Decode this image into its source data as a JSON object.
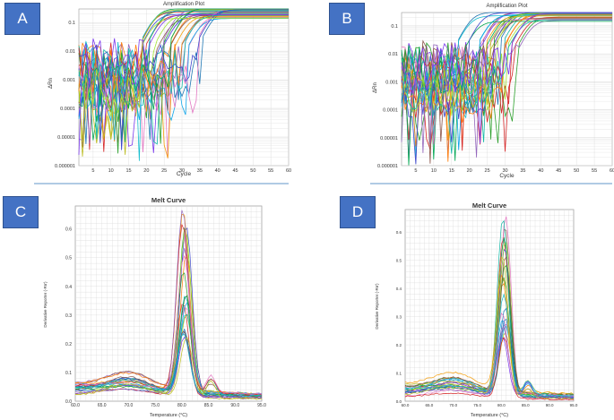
{
  "panels": {
    "A": {
      "label": "A"
    },
    "B": {
      "label": "B"
    },
    "C": {
      "label": "C"
    },
    "D": {
      "label": "D"
    }
  },
  "colors": {
    "badge": "#4472c4",
    "grid": "#d9d9d9",
    "series_palette": [
      "#1f77b4",
      "#2ca02c",
      "#d62728",
      "#9467bd",
      "#8c564b",
      "#e377c2",
      "#17becf",
      "#bcbd22",
      "#ff7f0e",
      "#00a651",
      "#3f48cc",
      "#a3e635",
      "#14b8a6",
      "#7c3aed",
      "#f59e0b",
      "#0ea5e9"
    ]
  },
  "chart_data": [
    {
      "id": "A",
      "type": "line",
      "title": "Amplification Plot",
      "xlabel": "Cycle",
      "ylabel": "ΔRn",
      "yscale": "log",
      "xlim": [
        1,
        60
      ],
      "ylim": [
        1e-06,
        0.3
      ],
      "xticks": [
        "5",
        "10",
        "15",
        "20",
        "25",
        "30",
        "35",
        "40",
        "45",
        "50",
        "55",
        "60"
      ],
      "yticks": [
        "0.1",
        "0.01",
        "0.001",
        "0.0001",
        "0.00001",
        "0.000001"
      ],
      "series_count": 30,
      "threshold_cycle_range": [
        22,
        40
      ],
      "plateau": 0.2
    },
    {
      "id": "B",
      "type": "line",
      "title": "Amplification Plot",
      "xlabel": "Cycle",
      "ylabel": "ΔRn",
      "yscale": "log",
      "xlim": [
        1,
        60
      ],
      "ylim": [
        1e-06,
        0.3
      ],
      "xticks": [
        "5",
        "10",
        "15",
        "20",
        "25",
        "30",
        "35",
        "40",
        "45",
        "50",
        "55",
        "60"
      ],
      "yticks": [
        "0.1",
        "0.01",
        "0.001",
        "0.0001",
        "0.00001",
        "0.000001"
      ],
      "series_count": 30,
      "threshold_cycle_range": [
        20,
        38
      ],
      "plateau": 0.2
    },
    {
      "id": "C",
      "type": "line",
      "title": "Melt Curve",
      "xlabel": "Temperature (°C)",
      "ylabel": "Derivative Reporter (-Rn')",
      "xlim": [
        60,
        95
      ],
      "ylim": [
        0,
        0.68
      ],
      "xticks": [
        "60.0",
        "65.0",
        "70.0",
        "75.0",
        "80.0",
        "85.0",
        "90.0",
        "95.0"
      ],
      "yticks": [
        "0.0",
        "0.1",
        "0.2",
        "0.3",
        "0.4",
        "0.5",
        "0.6"
      ],
      "peak_temperature": 80.5,
      "peak_range": [
        0.2,
        0.65
      ],
      "series_count": 24
    },
    {
      "id": "D",
      "type": "line",
      "title": "Melt Curve",
      "xlabel": "Temperature (°C)",
      "ylabel": "Derivative Reporter (-Rn')",
      "xlim": [
        60,
        95
      ],
      "ylim": [
        0,
        0.68
      ],
      "xticks": [
        "60.0",
        "65.0",
        "70.0",
        "75.0",
        "80.0",
        "85.0",
        "90.0",
        "95.0"
      ],
      "yticks": [
        "0.0",
        "0.1",
        "0.2",
        "0.3",
        "0.4",
        "0.5",
        "0.6"
      ],
      "peak_temperature": 80.5,
      "peak_range": [
        0.2,
        0.65
      ],
      "series_count": 24
    }
  ]
}
